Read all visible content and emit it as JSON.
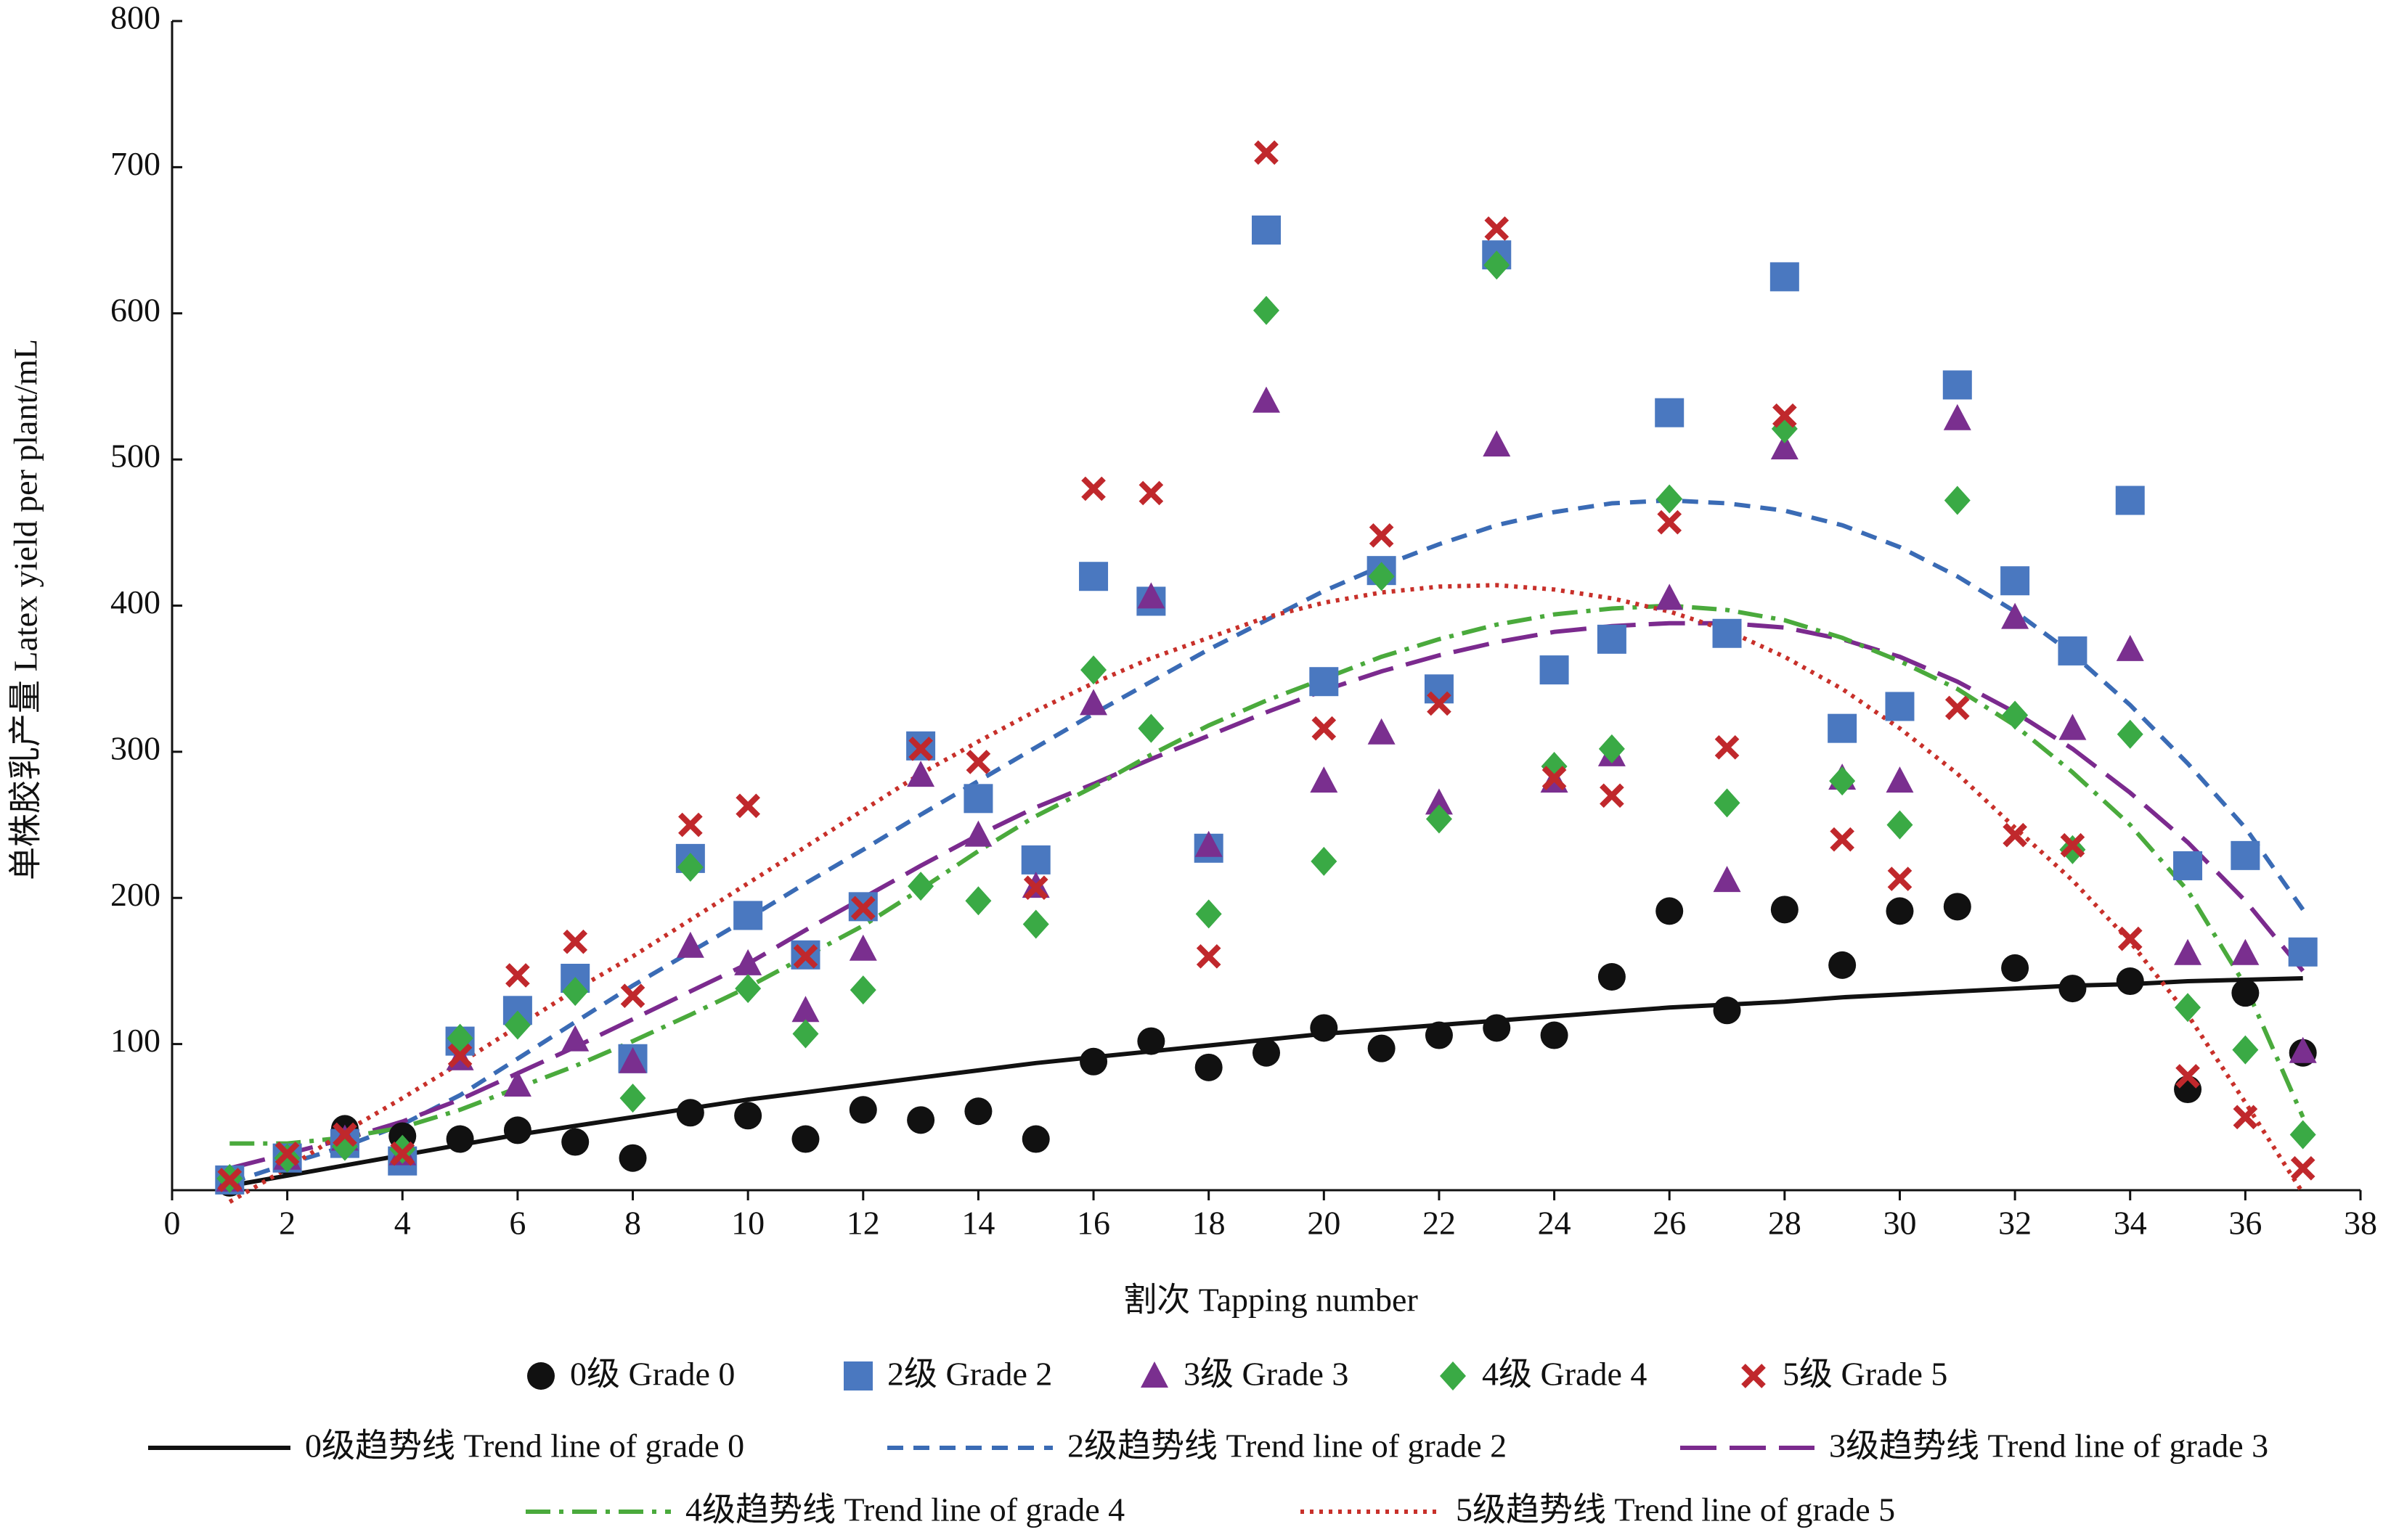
{
  "chart_data": {
    "type": "scatter",
    "x_label": "割次  Tapping number",
    "y_label": "单株胶乳产量  Latex yield per plant/mL",
    "xlim": [
      0,
      38
    ],
    "xticks": [
      0,
      2,
      4,
      6,
      8,
      10,
      12,
      14,
      16,
      18,
      20,
      22,
      24,
      26,
      28,
      30,
      32,
      34,
      36,
      38
    ],
    "ylim": [
      0,
      800
    ],
    "yticks": [
      100,
      200,
      300,
      400,
      500,
      600,
      700,
      800
    ],
    "x": [
      1,
      2,
      3,
      4,
      5,
      6,
      7,
      8,
      9,
      10,
      11,
      12,
      13,
      14,
      15,
      16,
      17,
      18,
      19,
      20,
      21,
      22,
      23,
      24,
      25,
      26,
      27,
      28,
      29,
      30,
      31,
      32,
      33,
      34,
      35,
      36,
      37
    ],
    "series": [
      {
        "name": "0级  Grade 0",
        "color": "#111111",
        "style": "marker",
        "marker": "circle",
        "values": [
          5,
          20,
          42,
          37,
          35,
          41,
          33,
          22,
          53,
          51,
          35,
          55,
          48,
          54,
          35,
          88,
          102,
          84,
          94,
          111,
          97,
          106,
          111,
          106,
          146,
          191,
          123,
          192,
          154,
          191,
          194,
          152,
          138,
          143,
          69,
          135,
          94
        ]
      },
      {
        "name": "2级  Grade 2",
        "color": "#4a78c0",
        "style": "marker",
        "marker": "square",
        "values": [
          7,
          22,
          32,
          20,
          102,
          123,
          145,
          90,
          227,
          188,
          161,
          194,
          304,
          268,
          226,
          420,
          403,
          234,
          657,
          348,
          424,
          343,
          640,
          356,
          377,
          532,
          381,
          625,
          316,
          331,
          551,
          417,
          369,
          472,
          222,
          229,
          163
        ]
      },
      {
        "name": "3级  Grade 3",
        "color": "#7a2f8f",
        "style": "marker",
        "marker": "triangle",
        "values": [
          7,
          22,
          35,
          25,
          90,
          72,
          103,
          88,
          167,
          155,
          123,
          165,
          284,
          243,
          208,
          333,
          406,
          236,
          540,
          280,
          313,
          265,
          510,
          280,
          298,
          405,
          212,
          508,
          282,
          280,
          528,
          392,
          316,
          370,
          162,
          162,
          95
        ]
      },
      {
        "name": "4级  Grade 4",
        "color": "#3aaa45",
        "style": "marker",
        "marker": "diamond",
        "values": [
          8,
          22,
          30,
          28,
          104,
          113,
          136,
          63,
          221,
          138,
          107,
          137,
          208,
          198,
          182,
          356,
          316,
          189,
          602,
          225,
          420,
          254,
          633,
          290,
          302,
          473,
          265,
          521,
          280,
          250,
          472,
          325,
          233,
          312,
          125,
          96,
          38
        ]
      },
      {
        "name": "5级  Grade 5",
        "color": "#c0282c",
        "style": "marker",
        "marker": "cross",
        "values": [
          7,
          25,
          38,
          25,
          92,
          147,
          170,
          133,
          250,
          263,
          160,
          193,
          302,
          293,
          207,
          480,
          477,
          160,
          710,
          316,
          448,
          333,
          658,
          282,
          270,
          457,
          303,
          530,
          240,
          213,
          330,
          243,
          236,
          172,
          78,
          50,
          15
        ]
      },
      {
        "name": "0级趋势线  Trend line of grade 0",
        "color": "#111111",
        "style": "line",
        "dash": "none",
        "values": [
          3,
          10,
          17,
          24,
          31,
          38,
          44,
          50,
          56,
          62,
          67,
          72,
          77,
          82,
          87,
          91,
          95,
          99,
          103,
          107,
          110,
          113,
          116,
          119,
          122,
          125,
          127,
          129,
          132,
          134,
          136,
          138,
          140,
          141,
          143,
          144,
          145
        ]
      },
      {
        "name": "2级趋势线  Trend line of grade 2",
        "color": "#3a6bb5",
        "style": "line",
        "dash": "22 14",
        "values": [
          5,
          18,
          30,
          45,
          65,
          90,
          115,
          140,
          163,
          186,
          210,
          233,
          257,
          280,
          303,
          326,
          348,
          370,
          390,
          410,
          427,
          442,
          455,
          464,
          470,
          472,
          470,
          465,
          455,
          440,
          420,
          396,
          367,
          332,
          292,
          248,
          192
        ]
      },
      {
        "name": "3级趋势线  Trend line of grade 3",
        "color": "#7b2a8e",
        "style": "line",
        "dash": "50 18",
        "values": [
          15,
          25,
          35,
          47,
          62,
          80,
          98,
          117,
          136,
          155,
          178,
          200,
          222,
          243,
          262,
          278,
          295,
          311,
          327,
          342,
          355,
          366,
          375,
          382,
          386,
          388,
          388,
          385,
          377,
          365,
          348,
          327,
          302,
          272,
          238,
          198,
          150
        ]
      },
      {
        "name": "4级趋势线  Trend line of grade 4",
        "color": "#4aaa3c",
        "style": "line",
        "dash": "34 12 6 12",
        "values": [
          32,
          32,
          36,
          43,
          55,
          70,
          85,
          102,
          120,
          139,
          160,
          181,
          206,
          232,
          256,
          276,
          298,
          318,
          335,
          350,
          365,
          377,
          387,
          394,
          398,
          400,
          397,
          390,
          378,
          362,
          343,
          318,
          286,
          250,
          205,
          140,
          50
        ]
      },
      {
        "name": "5级趋势线  Trend line of grade 5",
        "color": "#c8302a",
        "style": "line",
        "dash": "5 8",
        "values": [
          -8,
          15,
          40,
          63,
          87,
          112,
          137,
          160,
          185,
          210,
          235,
          260,
          285,
          307,
          328,
          347,
          364,
          378,
          392,
          402,
          409,
          413,
          414,
          411,
          405,
          396,
          383,
          365,
          343,
          316,
          285,
          248,
          212,
          170,
          120,
          60,
          -2
        ]
      }
    ]
  }
}
